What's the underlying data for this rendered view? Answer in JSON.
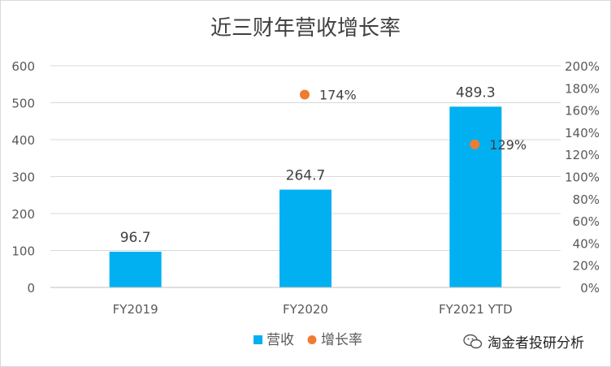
{
  "colors": {
    "bar": "#00B0F0",
    "dot": "#ED7D31",
    "text": "#595959",
    "grid": "#d9d9d9"
  },
  "chart_data": {
    "type": "bar",
    "title": "近三财年营收增长率",
    "categories": [
      "FY2019",
      "FY2020",
      "FY2021 YTD"
    ],
    "series": [
      {
        "name": "营收",
        "kind": "bar",
        "axis": "left",
        "values": [
          96.7,
          264.7,
          489.3
        ],
        "data_labels": [
          "96.7",
          "264.7",
          "489.3"
        ]
      },
      {
        "name": "增长率",
        "kind": "scatter",
        "axis": "right",
        "values": [
          null,
          174,
          129
        ],
        "data_labels": [
          "",
          "174%",
          "129%"
        ]
      }
    ],
    "y_left": {
      "lim": [
        0,
        600
      ],
      "ticks": [
        "0",
        "100",
        "200",
        "300",
        "400",
        "500",
        "600"
      ]
    },
    "y_right": {
      "lim": [
        0,
        200
      ],
      "ticks": [
        "0%",
        "20%",
        "40%",
        "60%",
        "80%",
        "100%",
        "120%",
        "140%",
        "160%",
        "180%",
        "200%"
      ]
    },
    "grid": true,
    "legend_position": "bottom"
  },
  "watermark": {
    "text": "淘金者投研分析",
    "icon": "wechat-icon"
  }
}
